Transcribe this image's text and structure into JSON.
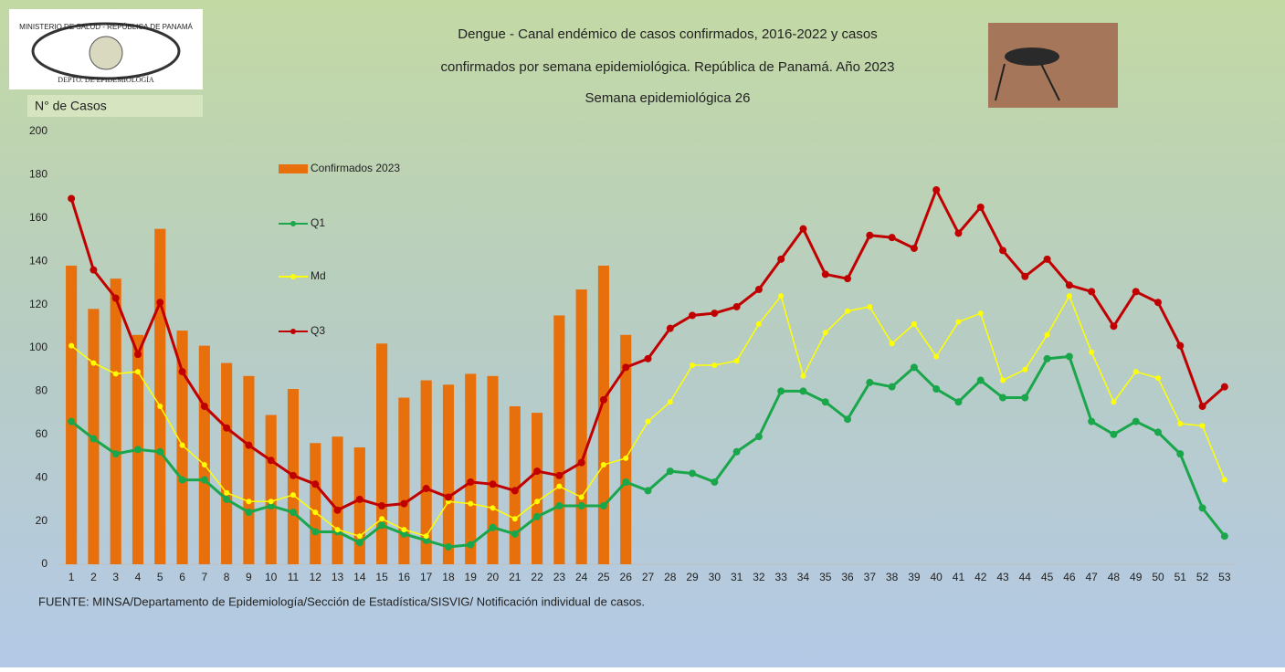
{
  "chart_data": {
    "type": "line",
    "title": [
      "Dengue - Canal endémico de casos confirmados, 2016-2022 y casos",
      "confirmados por semana epidemiológica. República de Panamá. Año 2023",
      "Semana epidemiológica 26"
    ],
    "y_label": "N° de Casos",
    "source": "FUENTE: MINSA/Departamento de Epidemiología/Sección de Estadística/SISVIG/ Notificación individual de casos.",
    "logo": {
      "top_text": "MINISTERIO DE SALUD - REPÚBLICA DE PANAMÁ",
      "bottom_text": "DEPTO. DE EPIDEMIOLOGÍA"
    },
    "categories": [
      1,
      2,
      3,
      4,
      5,
      6,
      7,
      8,
      9,
      10,
      11,
      12,
      13,
      14,
      15,
      16,
      17,
      18,
      19,
      20,
      21,
      22,
      23,
      24,
      25,
      26,
      27,
      28,
      29,
      30,
      31,
      32,
      33,
      34,
      35,
      36,
      37,
      38,
      39,
      40,
      41,
      42,
      43,
      44,
      45,
      46,
      47,
      48,
      49,
      50,
      51,
      52,
      53
    ],
    "ylim": [
      0,
      200
    ],
    "yticks": [
      0,
      20,
      40,
      60,
      80,
      100,
      120,
      140,
      160,
      180,
      200
    ],
    "grid": false,
    "series": [
      {
        "name": "Confirmados 2023",
        "type": "bar",
        "color": "#e8700c",
        "values": [
          138,
          118,
          132,
          106,
          155,
          108,
          101,
          93,
          87,
          69,
          81,
          56,
          59,
          54,
          102,
          77,
          85,
          83,
          88,
          87,
          73,
          70,
          115,
          127,
          138,
          106,
          null,
          null,
          null,
          null,
          null,
          null,
          null,
          null,
          null,
          null,
          null,
          null,
          null,
          null,
          null,
          null,
          null,
          null,
          null,
          null,
          null,
          null,
          null,
          null,
          null,
          null,
          null
        ]
      },
      {
        "name": "Q1",
        "type": "line",
        "color": "#1aa64a",
        "values": [
          66,
          58,
          51,
          53,
          52,
          39,
          39,
          30,
          24,
          27,
          24,
          15,
          15,
          10,
          18,
          14,
          11,
          8,
          9,
          17,
          14,
          22,
          27,
          27,
          27,
          38,
          34,
          43,
          42,
          38,
          52,
          59,
          80,
          80,
          75,
          67,
          84,
          82,
          91,
          81,
          75,
          85,
          77,
          77,
          95,
          96,
          66,
          60,
          66,
          61,
          51,
          26,
          13
        ]
      },
      {
        "name": "Md",
        "type": "line",
        "color": "#ffff00",
        "values": [
          101,
          93,
          88,
          89,
          73,
          55,
          46,
          33,
          29,
          29,
          32,
          24,
          16,
          13,
          21,
          16,
          13,
          29,
          28,
          26,
          21,
          29,
          36,
          31,
          46,
          49,
          66,
          75,
          92,
          92,
          94,
          111,
          124,
          87,
          107,
          117,
          119,
          102,
          111,
          96,
          112,
          116,
          85,
          90,
          106,
          124,
          98,
          75,
          89,
          86,
          65,
          64,
          39
        ]
      },
      {
        "name": "Q3",
        "type": "line",
        "color": "#c00000",
        "values": [
          169,
          136,
          123,
          97,
          121,
          89,
          73,
          63,
          55,
          48,
          41,
          37,
          25,
          30,
          27,
          28,
          35,
          31,
          38,
          37,
          34,
          43,
          41,
          47,
          76,
          91,
          95,
          109,
          115,
          116,
          119,
          127,
          141,
          155,
          134,
          132,
          152,
          151,
          146,
          173,
          153,
          165,
          145,
          133,
          141,
          129,
          126,
          110,
          126,
          121,
          101,
          73,
          82
        ]
      }
    ]
  }
}
